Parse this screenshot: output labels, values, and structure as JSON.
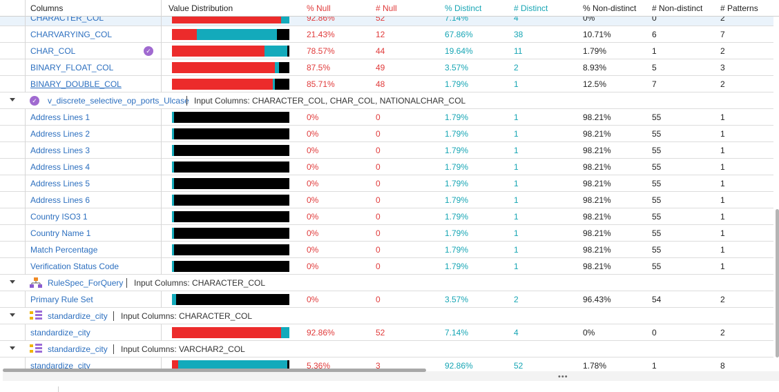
{
  "headers": {
    "columns": "Columns",
    "value_distribution": "Value Distribution",
    "pct_null": "% Null",
    "num_null": "# Null",
    "pct_distinct": "% Distinct",
    "num_distinct": "# Distinct",
    "pct_non_distinct": "% Non-distinct",
    "num_non_distinct": "# Non-distinct",
    "num_patterns": "# Patterns"
  },
  "colors": {
    "null": "#ec2b2b",
    "distinct": "#13aabb",
    "non_distinct": "#000000",
    "link": "#2c6fbf"
  },
  "rows_top": [
    {
      "name": "CHARACTER_COL",
      "pct_null": "92.86%",
      "num_null": "52",
      "pct_distinct": "7.14%",
      "num_distinct": "4",
      "pct_nd": "0%",
      "num_nd": "0",
      "patterns": "2",
      "bar": [
        0.929,
        0.071,
        0.0
      ],
      "selected": true,
      "icon": "link-icon"
    },
    {
      "name": "CHARVARYING_COL",
      "pct_null": "21.43%",
      "num_null": "12",
      "pct_distinct": "67.86%",
      "num_distinct": "38",
      "pct_nd": "10.71%",
      "num_nd": "6",
      "patterns": "7",
      "bar": [
        0.214,
        0.679,
        0.107
      ]
    },
    {
      "name": "CHAR_COL",
      "pct_null": "78.57%",
      "num_null": "44",
      "pct_distinct": "19.64%",
      "num_distinct": "11",
      "pct_nd": "1.79%",
      "num_nd": "1",
      "patterns": "2",
      "bar": [
        0.786,
        0.196,
        0.018
      ],
      "icon": "verified-badge-icon"
    },
    {
      "name": "BINARY_FLOAT_COL",
      "pct_null": "87.5%",
      "num_null": "49",
      "pct_distinct": "3.57%",
      "num_distinct": "2",
      "pct_nd": "8.93%",
      "num_nd": "5",
      "patterns": "3",
      "bar": [
        0.875,
        0.036,
        0.089
      ]
    },
    {
      "name": "BINARY_DOUBLE_COL",
      "pct_null": "85.71%",
      "num_null": "48",
      "pct_distinct": "1.79%",
      "num_distinct": "1",
      "pct_nd": "12.5%",
      "num_nd": "7",
      "patterns": "2",
      "bar": [
        0.857,
        0.018,
        0.125
      ],
      "underline": true
    }
  ],
  "group1": {
    "name": "v_discrete_selective_op_ports_Ulcase",
    "input": "Input Columns: CHARACTER_COL, CHAR_COL, NATIONALCHAR_COL"
  },
  "rows_g1": [
    {
      "name": "Address Lines 1"
    },
    {
      "name": "Address Lines 2"
    },
    {
      "name": "Address Lines 3"
    },
    {
      "name": "Address Lines 4"
    },
    {
      "name": "Address Lines 5"
    },
    {
      "name": "Address Lines 6"
    },
    {
      "name": "Country ISO3 1"
    },
    {
      "name": "Country Name 1"
    },
    {
      "name": "Match Percentage"
    },
    {
      "name": "Verification Status Code"
    }
  ],
  "g1_values": {
    "pct_null": "0%",
    "num_null": "0",
    "pct_distinct": "1.79%",
    "num_distinct": "1",
    "pct_nd": "98.21%",
    "num_nd": "55",
    "patterns": "1",
    "bar": [
      0.0,
      0.018,
      0.982
    ]
  },
  "group2": {
    "name": "RuleSpec_ForQuery",
    "input": "Input Columns: CHARACTER_COL"
  },
  "rows_g2": [
    {
      "name": "Primary Rule Set",
      "pct_null": "0%",
      "num_null": "0",
      "pct_distinct": "3.57%",
      "num_distinct": "2",
      "pct_nd": "96.43%",
      "num_nd": "54",
      "patterns": "2",
      "bar": [
        0.0,
        0.036,
        0.964
      ]
    }
  ],
  "group3": {
    "name": "standardize_city",
    "input": "Input Columns: CHARACTER_COL"
  },
  "rows_g3": [
    {
      "name": "standardize_city",
      "pct_null": "92.86%",
      "num_null": "52",
      "pct_distinct": "7.14%",
      "num_distinct": "4",
      "pct_nd": "0%",
      "num_nd": "0",
      "patterns": "2",
      "bar": [
        0.929,
        0.071,
        0.0
      ]
    }
  ],
  "group4": {
    "name": "standardize_city",
    "input": "Input Columns: VARCHAR2_COL"
  },
  "rows_g4": [
    {
      "name": "standardize_city",
      "pct_null": "5.36%",
      "num_null": "3",
      "pct_distinct": "92.86%",
      "num_distinct": "52",
      "pct_nd": "1.78%",
      "num_nd": "1",
      "patterns": "8",
      "bar": [
        0.054,
        0.929,
        0.018
      ],
      "underline": true
    }
  ],
  "scroll_dots": "•••"
}
